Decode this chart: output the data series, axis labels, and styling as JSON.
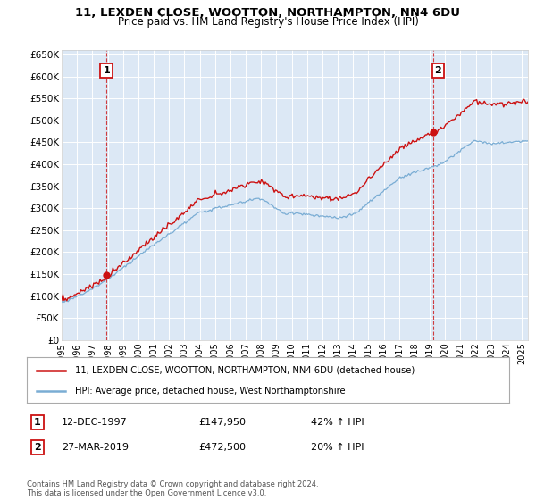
{
  "title": "11, LEXDEN CLOSE, WOOTTON, NORTHAMPTON, NN4 6DU",
  "subtitle": "Price paid vs. HM Land Registry's House Price Index (HPI)",
  "legend_line1": "11, LEXDEN CLOSE, WOOTTON, NORTHAMPTON, NN4 6DU (detached house)",
  "legend_line2": "HPI: Average price, detached house, West Northamptonshire",
  "annotation1_label": "1",
  "annotation1_date": "12-DEC-1997",
  "annotation1_price": "£147,950",
  "annotation1_hpi": "42% ↑ HPI",
  "annotation2_label": "2",
  "annotation2_date": "27-MAR-2019",
  "annotation2_price": "£472,500",
  "annotation2_hpi": "20% ↑ HPI",
  "footer": "Contains HM Land Registry data © Crown copyright and database right 2024.\nThis data is licensed under the Open Government Licence v3.0.",
  "sale1_year": 1997.92,
  "sale1_value": 147950,
  "sale2_year": 2019.24,
  "sale2_value": 472500,
  "hpi_color": "#7aadd4",
  "price_color": "#cc1111",
  "background_color": "#ffffff",
  "plot_bg_color": "#dce8f5",
  "grid_color": "#ffffff",
  "ylim": [
    0,
    660000
  ],
  "xlim_start": 1995.0,
  "xlim_end": 2025.4
}
